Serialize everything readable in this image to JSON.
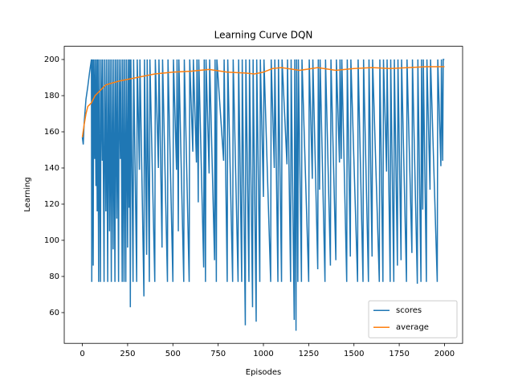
{
  "chart_data": {
    "type": "line",
    "title": "Learning Curve DQN",
    "x_label": "Episodes",
    "y_label": "Learning",
    "xlim": [
      -100,
      2100
    ],
    "xticks": [
      0,
      250,
      500,
      750,
      1000,
      1250,
      1500,
      1750,
      2000
    ],
    "ylim": [
      43,
      207.3
    ],
    "yticks": [
      60,
      80,
      100,
      120,
      140,
      160,
      180,
      200
    ],
    "legend": "lower right",
    "series": [
      {
        "name": "scores",
        "color": "#1f77b4",
        "x": [
          0,
          5,
          10,
          20,
          30,
          40,
          50,
          52,
          55,
          60,
          62,
          68,
          70,
          75,
          78,
          82,
          85,
          90,
          93,
          100,
          103,
          110,
          112,
          120,
          123,
          130,
          133,
          140,
          143,
          150,
          153,
          160,
          163,
          170,
          173,
          180,
          183,
          190,
          193,
          200,
          203,
          210,
          213,
          220,
          223,
          230,
          233,
          240,
          243,
          250,
          253,
          258,
          261,
          265,
          268,
          280,
          283,
          300,
          303,
          315,
          318,
          340,
          343,
          355,
          358,
          370,
          373,
          400,
          403,
          420,
          423,
          440,
          443,
          470,
          473,
          500,
          503,
          520,
          523,
          530,
          533,
          560,
          563,
          590,
          593,
          610,
          613,
          630,
          633,
          640,
          643,
          670,
          673,
          680,
          683,
          700,
          703,
          730,
          733,
          740,
          743,
          780,
          783,
          800,
          803,
          830,
          833,
          860,
          863,
          880,
          883,
          900,
          903,
          920,
          923,
          940,
          943,
          960,
          963,
          980,
          983,
          1000,
          1003,
          1040,
          1043,
          1060,
          1063,
          1080,
          1083,
          1100,
          1103,
          1130,
          1133,
          1150,
          1153,
          1170,
          1173,
          1180,
          1183,
          1190,
          1193,
          1210,
          1213,
          1250,
          1253,
          1270,
          1273,
          1300,
          1303,
          1310,
          1313,
          1340,
          1343,
          1370,
          1373,
          1400,
          1403,
          1420,
          1423,
          1430,
          1433,
          1460,
          1463,
          1480,
          1483,
          1520,
          1523,
          1550,
          1553,
          1580,
          1583,
          1600,
          1603,
          1640,
          1643,
          1660,
          1663,
          1680,
          1683,
          1700,
          1703,
          1720,
          1723,
          1740,
          1743,
          1760,
          1763,
          1790,
          1793,
          1820,
          1823,
          1850,
          1853,
          1870,
          1873,
          1880,
          1883,
          1900,
          1903,
          1920,
          1923,
          1960,
          1963,
          1980,
          1983,
          1990,
          1993,
          1999
        ],
        "values": [
          157,
          153,
          165,
          178,
          185,
          193,
          200,
          77,
          200,
          86,
          200,
          145,
          200,
          130,
          200,
          116,
          200,
          77,
          200,
          77,
          200,
          144,
          200,
          77,
          200,
          116,
          200,
          77,
          200,
          105,
          200,
          77,
          200,
          95,
          200,
          77,
          200,
          112,
          200,
          77,
          200,
          145,
          200,
          77,
          200,
          77,
          200,
          77,
          200,
          96,
          200,
          118,
          200,
          63,
          200,
          77,
          200,
          77,
          200,
          139,
          200,
          69,
          200,
          92,
          200,
          77,
          200,
          77,
          200,
          140,
          200,
          96,
          200,
          77,
          200,
          77,
          200,
          139,
          200,
          105,
          200,
          77,
          200,
          77,
          200,
          149,
          200,
          143,
          200,
          121,
          200,
          85,
          200,
          77,
          200,
          137,
          200,
          89,
          200,
          77,
          200,
          144,
          200,
          77,
          200,
          77,
          200,
          77,
          200,
          77,
          200,
          53,
          200,
          77,
          200,
          63,
          200,
          55,
          200,
          77,
          200,
          124,
          200,
          77,
          200,
          140,
          200,
          77,
          200,
          77,
          200,
          142,
          200,
          77,
          200,
          56,
          200,
          50,
          200,
          77,
          200,
          77,
          200,
          77,
          200,
          134,
          200,
          84,
          200,
          128,
          200,
          77,
          200,
          86,
          200,
          89,
          200,
          143,
          200,
          145,
          200,
          77,
          200,
          91,
          200,
          77,
          200,
          77,
          200,
          77,
          200,
          91,
          200,
          77,
          200,
          77,
          200,
          138,
          200,
          77,
          200,
          77,
          200,
          86,
          200,
          89,
          200,
          77,
          200,
          93,
          200,
          76,
          200,
          77,
          200,
          117,
          200,
          77,
          200,
          128,
          200,
          77,
          200,
          141,
          200,
          144,
          200,
          200
        ]
      },
      {
        "name": "average",
        "color": "#ff7f0e",
        "x": [
          0,
          10,
          20,
          30,
          50,
          70,
          100,
          130,
          200,
          300,
          400,
          500,
          600,
          700,
          800,
          900,
          950,
          1000,
          1050,
          1100,
          1200,
          1300,
          1400,
          1500,
          1600,
          1700,
          1800,
          1900,
          2000
        ],
        "values": [
          157,
          164,
          170,
          174,
          176,
          180,
          183,
          186,
          188,
          190,
          192,
          193,
          193.5,
          194.5,
          193,
          192.5,
          192,
          193,
          195,
          195.5,
          194,
          195.5,
          194,
          195,
          195.5,
          195,
          195.5,
          196,
          196
        ]
      }
    ]
  }
}
